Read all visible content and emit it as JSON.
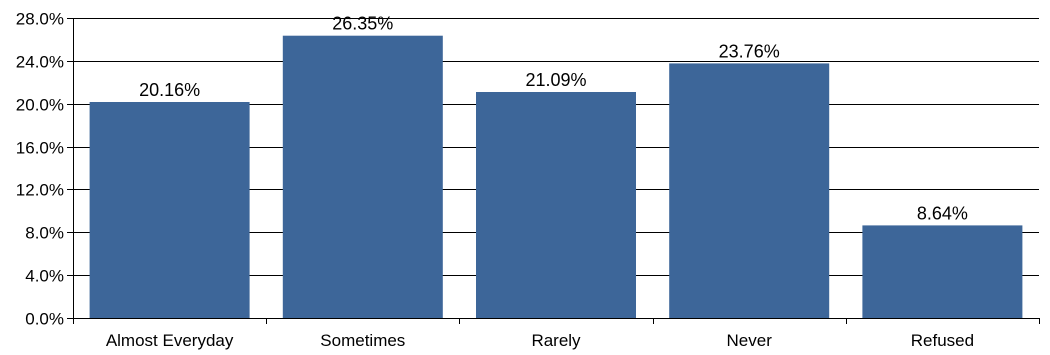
{
  "chart_data": {
    "type": "bar",
    "categories": [
      "Almost Everyday",
      "Sometimes",
      "Rarely",
      "Never",
      "Refused"
    ],
    "values": [
      20.16,
      26.35,
      21.09,
      23.76,
      8.64
    ],
    "value_labels": [
      "20.16%",
      "26.35%",
      "21.09%",
      "23.76%",
      "8.64%"
    ],
    "ylim": [
      0,
      28
    ],
    "yticks": [
      0,
      4,
      8,
      12,
      16,
      20,
      24,
      28
    ],
    "ytick_labels": [
      "0.0%",
      "4.0%",
      "8.0%",
      "12.0%",
      "16.0%",
      "20.0%",
      "24.0%",
      "28.0%"
    ],
    "title": "",
    "xlabel": "",
    "ylabel": "",
    "grid": "horizontal",
    "legend": "none",
    "bar_color": "#3d6699"
  }
}
